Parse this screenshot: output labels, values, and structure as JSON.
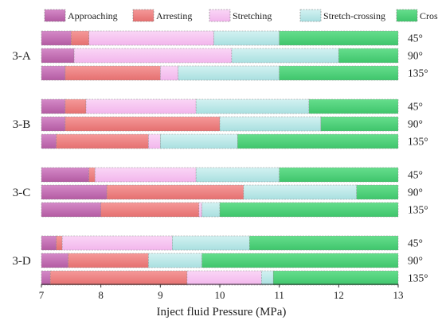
{
  "chart_data": {
    "type": "bar",
    "orientation": "horizontal",
    "stacked": true,
    "xlabel": "Inject fluid Pressure (MPa)",
    "xlim": [
      7,
      13
    ],
    "xticks": [
      "7",
      "8",
      "9",
      "10",
      "11",
      "12",
      "13"
    ],
    "legend_position": "top",
    "series": [
      {
        "name": "Approaching",
        "color": "#c66fb4"
      },
      {
        "name": "Arresting",
        "color": "#f08383"
      },
      {
        "name": "Stretching",
        "color": "#f7c6f2"
      },
      {
        "name": "Stretch-crossing",
        "color": "#bfeaea"
      },
      {
        "name": "Crossing",
        "color": "#52d47c"
      }
    ],
    "groups": [
      {
        "label": "3-A",
        "bars": [
          {
            "angle": "45°",
            "bounds": [
              7,
              7.5,
              7.8,
              9.9,
              11,
              13
            ]
          },
          {
            "angle": "90°",
            "bounds": [
              7,
              7.55,
              7.55,
              10.2,
              12,
              13
            ]
          },
          {
            "angle": "135°",
            "bounds": [
              7,
              7.4,
              9.0,
              9.3,
              11,
              13
            ]
          }
        ]
      },
      {
        "label": "3-B",
        "bars": [
          {
            "angle": "45°",
            "bounds": [
              7,
              7.4,
              7.75,
              9.6,
              11.5,
              13
            ]
          },
          {
            "angle": "90°",
            "bounds": [
              7,
              7.4,
              10.0,
              10.0,
              11.7,
              13
            ]
          },
          {
            "angle": "135°",
            "bounds": [
              7,
              7.25,
              8.8,
              9.0,
              10.3,
              13
            ]
          }
        ]
      },
      {
        "label": "3-C",
        "bars": [
          {
            "angle": "45°",
            "bounds": [
              7,
              7.8,
              7.9,
              9.6,
              11,
              13
            ]
          },
          {
            "angle": "90°",
            "bounds": [
              7,
              8.1,
              10.4,
              10.4,
              12.3,
              13
            ]
          },
          {
            "angle": "135°",
            "bounds": [
              7,
              8.0,
              9.65,
              9.7,
              10.0,
              13
            ]
          }
        ]
      },
      {
        "label": "3-D",
        "bars": [
          {
            "angle": "45°",
            "bounds": [
              7,
              7.25,
              7.35,
              9.2,
              10.5,
              13
            ]
          },
          {
            "angle": "90°",
            "bounds": [
              7,
              7.45,
              8.8,
              8.8,
              9.7,
              13
            ]
          },
          {
            "angle": "135°",
            "bounds": [
              7,
              7.15,
              9.45,
              10.7,
              10.9,
              13
            ]
          }
        ]
      }
    ]
  }
}
